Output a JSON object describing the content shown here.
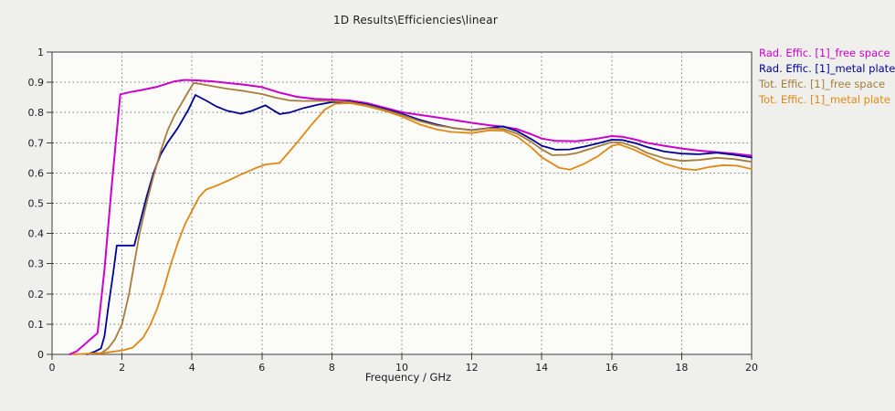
{
  "chart_data": {
    "type": "line",
    "title": "1D Results\\Efficiencies\\linear",
    "xlabel": "Frequency / GHz",
    "ylabel": "",
    "xlim": [
      0,
      20
    ],
    "ylim": [
      0,
      1
    ],
    "x_ticks": [
      0,
      2,
      4,
      6,
      8,
      10,
      12,
      14,
      16,
      18,
      20
    ],
    "y_ticks": [
      0,
      0.1,
      0.2,
      0.3,
      0.4,
      0.5,
      0.6,
      0.7,
      0.8,
      0.9,
      1
    ],
    "grid": "dotted",
    "legend_position": "outside-top-right",
    "colors": {
      "background": "#efefec",
      "plot_background": "#fbfbf8",
      "axis": "#3c3c3c",
      "grid": "#7a7a7a",
      "text": "#1b1b1b"
    },
    "series": [
      {
        "name": "Rad. Effic. [1]_free space",
        "color": "#CC00CC",
        "width": 2,
        "points": [
          [
            0.5,
            0
          ],
          [
            0.7,
            0.01
          ],
          [
            0.9,
            0.03
          ],
          [
            1.1,
            0.05
          ],
          [
            1.3,
            0.07
          ],
          [
            1.5,
            0.28
          ],
          [
            1.7,
            0.55
          ],
          [
            1.95,
            0.86
          ],
          [
            2.25,
            0.868
          ],
          [
            2.5,
            0.873
          ],
          [
            3,
            0.885
          ],
          [
            3.5,
            0.903
          ],
          [
            3.8,
            0.908
          ],
          [
            4.2,
            0.906
          ],
          [
            4.6,
            0.903
          ],
          [
            5,
            0.898
          ],
          [
            5.5,
            0.892
          ],
          [
            6,
            0.884
          ],
          [
            6.5,
            0.866
          ],
          [
            7,
            0.852
          ],
          [
            7.5,
            0.845
          ],
          [
            8,
            0.843
          ],
          [
            8.5,
            0.84
          ],
          [
            9,
            0.831
          ],
          [
            9.5,
            0.816
          ],
          [
            10,
            0.801
          ],
          [
            10.5,
            0.792
          ],
          [
            11,
            0.784
          ],
          [
            11.5,
            0.775
          ],
          [
            12,
            0.766
          ],
          [
            12.5,
            0.758
          ],
          [
            12.9,
            0.753
          ],
          [
            13.3,
            0.745
          ],
          [
            13.7,
            0.728
          ],
          [
            14,
            0.714
          ],
          [
            14.4,
            0.706
          ],
          [
            15,
            0.705
          ],
          [
            15.5,
            0.712
          ],
          [
            16,
            0.722
          ],
          [
            16.3,
            0.72
          ],
          [
            16.7,
            0.71
          ],
          [
            17,
            0.7
          ],
          [
            17.5,
            0.69
          ],
          [
            18,
            0.681
          ],
          [
            18.5,
            0.674
          ],
          [
            19,
            0.669
          ],
          [
            19.5,
            0.664
          ],
          [
            20,
            0.657
          ]
        ]
      },
      {
        "name": "Rad. Effic. [1]_metal plate",
        "color": "#000099",
        "width": 1.8,
        "points": [
          [
            1,
            0
          ],
          [
            1.2,
            0.008
          ],
          [
            1.4,
            0.02
          ],
          [
            1.5,
            0.06
          ],
          [
            1.6,
            0.15
          ],
          [
            1.75,
            0.27
          ],
          [
            1.85,
            0.36
          ],
          [
            2.35,
            0.36
          ],
          [
            2.5,
            0.43
          ],
          [
            2.7,
            0.52
          ],
          [
            2.9,
            0.6
          ],
          [
            3.1,
            0.66
          ],
          [
            3.3,
            0.7
          ],
          [
            3.6,
            0.75
          ],
          [
            3.9,
            0.81
          ],
          [
            4.1,
            0.858
          ],
          [
            4.4,
            0.84
          ],
          [
            4.7,
            0.82
          ],
          [
            5,
            0.806
          ],
          [
            5.4,
            0.796
          ],
          [
            5.7,
            0.805
          ],
          [
            6.1,
            0.824
          ],
          [
            6.5,
            0.795
          ],
          [
            6.8,
            0.8
          ],
          [
            7.2,
            0.815
          ],
          [
            7.6,
            0.826
          ],
          [
            8,
            0.834
          ],
          [
            8.5,
            0.836
          ],
          [
            9,
            0.827
          ],
          [
            9.5,
            0.812
          ],
          [
            10,
            0.796
          ],
          [
            10.5,
            0.776
          ],
          [
            11,
            0.76
          ],
          [
            11.5,
            0.748
          ],
          [
            12,
            0.742
          ],
          [
            12.5,
            0.749
          ],
          [
            12.9,
            0.754
          ],
          [
            13.3,
            0.738
          ],
          [
            13.7,
            0.712
          ],
          [
            14,
            0.69
          ],
          [
            14.4,
            0.677
          ],
          [
            14.8,
            0.678
          ],
          [
            15.2,
            0.687
          ],
          [
            15.6,
            0.698
          ],
          [
            16,
            0.71
          ],
          [
            16.3,
            0.709
          ],
          [
            16.7,
            0.698
          ],
          [
            17,
            0.686
          ],
          [
            17.5,
            0.671
          ],
          [
            18,
            0.664
          ],
          [
            18.5,
            0.662
          ],
          [
            19,
            0.667
          ],
          [
            19.5,
            0.66
          ],
          [
            20,
            0.651
          ]
        ]
      },
      {
        "name": "Tot. Effic. [1]_free space",
        "color": "#A67C3B",
        "width": 1.8,
        "points": [
          [
            1.35,
            0
          ],
          [
            1.6,
            0.02
          ],
          [
            1.8,
            0.05
          ],
          [
            2,
            0.1
          ],
          [
            2.2,
            0.2
          ],
          [
            2.35,
            0.3
          ],
          [
            2.5,
            0.4
          ],
          [
            2.7,
            0.5
          ],
          [
            2.9,
            0.59
          ],
          [
            3.1,
            0.67
          ],
          [
            3.3,
            0.74
          ],
          [
            3.5,
            0.79
          ],
          [
            3.7,
            0.83
          ],
          [
            3.9,
            0.87
          ],
          [
            4.05,
            0.898
          ],
          [
            4.3,
            0.893
          ],
          [
            4.7,
            0.885
          ],
          [
            5,
            0.879
          ],
          [
            5.5,
            0.871
          ],
          [
            6,
            0.861
          ],
          [
            6.4,
            0.849
          ],
          [
            6.8,
            0.84
          ],
          [
            7.2,
            0.838
          ],
          [
            7.6,
            0.839
          ],
          [
            8,
            0.838
          ],
          [
            8.5,
            0.834
          ],
          [
            9,
            0.824
          ],
          [
            9.5,
            0.809
          ],
          [
            10,
            0.792
          ],
          [
            10.5,
            0.772
          ],
          [
            11,
            0.757
          ],
          [
            11.5,
            0.749
          ],
          [
            12,
            0.741
          ],
          [
            12.5,
            0.748
          ],
          [
            12.9,
            0.746
          ],
          [
            13.3,
            0.73
          ],
          [
            13.7,
            0.703
          ],
          [
            14,
            0.678
          ],
          [
            14.3,
            0.659
          ],
          [
            14.7,
            0.66
          ],
          [
            15,
            0.666
          ],
          [
            15.5,
            0.684
          ],
          [
            16,
            0.702
          ],
          [
            16.3,
            0.7
          ],
          [
            16.7,
            0.685
          ],
          [
            17,
            0.667
          ],
          [
            17.5,
            0.649
          ],
          [
            18,
            0.64
          ],
          [
            18.5,
            0.643
          ],
          [
            19,
            0.65
          ],
          [
            19.5,
            0.646
          ],
          [
            20,
            0.637
          ]
        ]
      },
      {
        "name": "Tot. Effic. [1]_metal plate",
        "color": "#E08814",
        "width": 1.8,
        "points": [
          [
            0.6,
            0
          ],
          [
            1.5,
            0.005
          ],
          [
            2,
            0.013
          ],
          [
            2.3,
            0.022
          ],
          [
            2.6,
            0.055
          ],
          [
            2.8,
            0.095
          ],
          [
            3,
            0.15
          ],
          [
            3.2,
            0.22
          ],
          [
            3.4,
            0.3
          ],
          [
            3.6,
            0.37
          ],
          [
            3.8,
            0.43
          ],
          [
            4,
            0.475
          ],
          [
            4.2,
            0.52
          ],
          [
            4.4,
            0.545
          ],
          [
            4.7,
            0.558
          ],
          [
            5,
            0.573
          ],
          [
            5.4,
            0.595
          ],
          [
            5.8,
            0.615
          ],
          [
            6.1,
            0.628
          ],
          [
            6.5,
            0.633
          ],
          [
            7,
            0.7
          ],
          [
            7.4,
            0.757
          ],
          [
            7.8,
            0.81
          ],
          [
            8.1,
            0.829
          ],
          [
            8.5,
            0.831
          ],
          [
            9,
            0.821
          ],
          [
            9.5,
            0.806
          ],
          [
            10,
            0.787
          ],
          [
            10.5,
            0.761
          ],
          [
            11,
            0.744
          ],
          [
            11.4,
            0.736
          ],
          [
            12,
            0.732
          ],
          [
            12.5,
            0.741
          ],
          [
            12.9,
            0.74
          ],
          [
            13.3,
            0.72
          ],
          [
            13.7,
            0.685
          ],
          [
            14,
            0.652
          ],
          [
            14.5,
            0.617
          ],
          [
            14.8,
            0.611
          ],
          [
            15.2,
            0.63
          ],
          [
            15.6,
            0.655
          ],
          [
            16,
            0.69
          ],
          [
            16.2,
            0.695
          ],
          [
            16.6,
            0.679
          ],
          [
            17,
            0.657
          ],
          [
            17.5,
            0.631
          ],
          [
            18,
            0.614
          ],
          [
            18.4,
            0.61
          ],
          [
            18.8,
            0.62
          ],
          [
            19.2,
            0.626
          ],
          [
            19.6,
            0.624
          ],
          [
            20,
            0.613
          ]
        ]
      }
    ]
  }
}
